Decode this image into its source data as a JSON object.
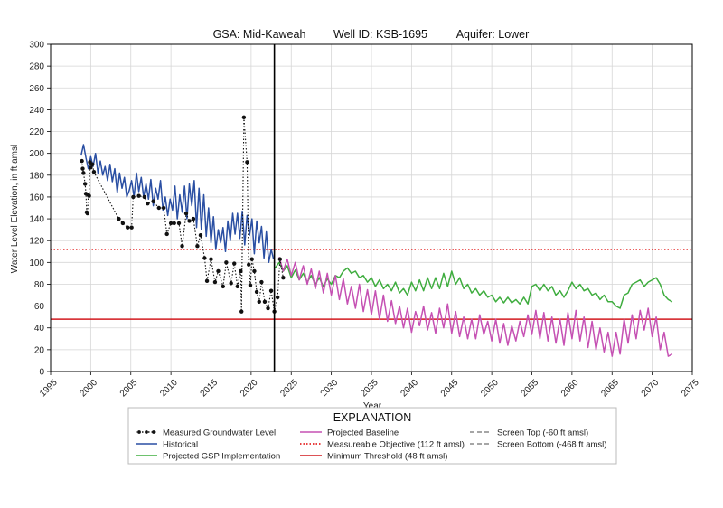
{
  "header": {
    "gsa": "GSA: Mid-Kaweah",
    "well": "Well ID: KSB-1695",
    "aquifer": "Aquifer: Lower"
  },
  "chart_data": {
    "type": "line",
    "title": "",
    "xlabel": "Year",
    "ylabel": "Water Level Elevation, in ft amsl",
    "xlim": [
      1995,
      2075
    ],
    "ylim": [
      0,
      300
    ],
    "xticks": [
      1995,
      2000,
      2005,
      2010,
      2015,
      2020,
      2025,
      2030,
      2035,
      2040,
      2045,
      2050,
      2055,
      2060,
      2065,
      2070,
      2075
    ],
    "yticks": [
      0,
      20,
      40,
      60,
      80,
      100,
      120,
      140,
      160,
      180,
      200,
      220,
      240,
      260,
      280,
      300
    ],
    "grid": true,
    "current_year_marker": 2022.9,
    "reference_lines": [
      {
        "name": "Measureable Objective (112 ft amsl)",
        "y": 112,
        "color": "#e00000",
        "style": "dotted"
      },
      {
        "name": "Minimum Threshold (48 ft amsl)",
        "y": 48,
        "color": "#d2191f",
        "style": "solid"
      }
    ],
    "series": [
      {
        "name": "Measured Groundwater Level",
        "color": "#111111",
        "style": "dotted-markers",
        "x": [
          1998.9,
          1999.0,
          1999.1,
          1999.3,
          1999.4,
          1999.5,
          1999.6,
          1999.7,
          1999.8,
          1999.9,
          2000.0,
          2000.2,
          2000.4,
          2003.5,
          2004.0,
          2004.6,
          2005.1,
          2005.3,
          2006.0,
          2006.7,
          2007.1,
          2007.8,
          2008.5,
          2009.1,
          2009.5,
          2010.0,
          2010.4,
          2011.0,
          2011.4,
          2011.9,
          2012.3,
          2012.8,
          2013.3,
          2013.7,
          2014.2,
          2014.5,
          2015.0,
          2015.5,
          2015.9,
          2016.5,
          2016.9,
          2017.5,
          2017.9,
          2018.3,
          2018.7,
          2018.8,
          2019.1,
          2019.5,
          2019.7,
          2019.9,
          2020.1,
          2020.4,
          2020.7,
          2021.0,
          2021.3,
          2021.7,
          2022.1,
          2022.5,
          2022.9,
          2023.3,
          2023.6,
          2024.0
        ],
        "y": [
          193,
          186,
          182,
          172,
          163,
          146,
          145,
          162,
          161,
          192,
          187,
          190,
          183,
          140,
          136,
          132,
          132,
          160,
          161,
          160,
          154,
          156,
          150,
          150,
          126,
          136,
          136,
          136,
          115,
          145,
          138,
          140,
          115,
          125,
          104,
          83,
          103,
          82,
          92,
          78,
          100,
          81,
          99,
          78,
          92,
          55,
          233,
          192,
          98,
          79,
          103,
          92,
          73,
          64,
          82,
          64,
          58,
          74,
          55,
          68,
          103,
          86
        ]
      },
      {
        "name": "Historical",
        "color": "#2a4fa3",
        "style": "solid",
        "x": [
          1998.8,
          1999.1,
          1999.4,
          1999.7,
          2000.0,
          2000.3,
          2000.6,
          2000.9,
          2001.2,
          2001.5,
          2001.8,
          2002.1,
          2002.4,
          2002.7,
          2003.0,
          2003.3,
          2003.6,
          2003.9,
          2004.2,
          2004.5,
          2004.8,
          2005.1,
          2005.4,
          2005.7,
          2006.0,
          2006.3,
          2006.6,
          2006.9,
          2007.2,
          2007.5,
          2007.8,
          2008.1,
          2008.4,
          2008.7,
          2009.0,
          2009.3,
          2009.6,
          2009.9,
          2010.2,
          2010.5,
          2010.8,
          2011.1,
          2011.4,
          2011.7,
          2012.0,
          2012.3,
          2012.6,
          2012.9,
          2013.2,
          2013.5,
          2013.8,
          2014.1,
          2014.4,
          2014.7,
          2015.0,
          2015.3,
          2015.6,
          2015.9,
          2016.2,
          2016.5,
          2016.8,
          2017.1,
          2017.4,
          2017.7,
          2018.0,
          2018.3,
          2018.6,
          2018.9,
          2019.2,
          2019.5,
          2019.8,
          2020.1,
          2020.4,
          2020.7,
          2021.0,
          2021.3,
          2021.6,
          2021.9,
          2022.2,
          2022.5,
          2022.8
        ],
        "y": [
          198,
          208,
          196,
          186,
          197,
          188,
          200,
          182,
          193,
          180,
          188,
          175,
          190,
          174,
          186,
          164,
          182,
          168,
          178,
          160,
          166,
          175,
          160,
          182,
          165,
          178,
          160,
          172,
          158,
          176,
          152,
          168,
          158,
          175,
          148,
          160,
          143,
          158,
          148,
          170,
          140,
          162,
          146,
          170,
          140,
          172,
          152,
          175,
          132,
          168,
          130,
          162,
          124,
          150,
          118,
          142,
          112,
          130,
          118,
          132,
          110,
          138,
          120,
          145,
          126,
          145,
          122,
          147,
          116,
          143,
          125,
          140,
          108,
          138,
          118,
          133,
          104,
          128,
          100,
          112,
          103
        ]
      },
      {
        "name": "Projected GSP Implementation",
        "color": "#3fad3f",
        "style": "solid",
        "x": [
          2023.0,
          2023.5,
          2024.0,
          2024.5,
          2025.0,
          2025.5,
          2026.0,
          2026.5,
          2027.0,
          2027.5,
          2028.0,
          2028.5,
          2029.0,
          2029.5,
          2030.0,
          2030.5,
          2031.0,
          2031.5,
          2032.0,
          2032.5,
          2033.0,
          2033.5,
          2034.0,
          2034.5,
          2035.0,
          2035.5,
          2036.0,
          2036.5,
          2037.0,
          2037.5,
          2038.0,
          2038.5,
          2039.0,
          2039.5,
          2040.0,
          2040.5,
          2041.0,
          2041.5,
          2042.0,
          2042.5,
          2043.0,
          2043.5,
          2044.0,
          2044.5,
          2045.0,
          2045.5,
          2046.0,
          2046.5,
          2047.0,
          2047.5,
          2048.0,
          2048.5,
          2049.0,
          2049.5,
          2050.0,
          2050.5,
          2051.0,
          2051.5,
          2052.0,
          2052.5,
          2053.0,
          2053.5,
          2054.0,
          2054.5,
          2055.0,
          2055.5,
          2056.0,
          2056.5,
          2057.0,
          2057.5,
          2058.0,
          2058.5,
          2059.0,
          2059.5,
          2060.0,
          2060.5,
          2061.0,
          2061.5,
          2062.0,
          2062.5,
          2063.0,
          2063.5,
          2064.0,
          2064.5,
          2065.0,
          2065.5,
          2066.0,
          2066.5,
          2067.0,
          2067.5,
          2068.0,
          2068.5,
          2069.0,
          2069.5,
          2070.0,
          2070.5,
          2071.0,
          2071.5,
          2072.0,
          2072.5
        ],
        "y": [
          95,
          100,
          92,
          97,
          86,
          93,
          84,
          90,
          82,
          88,
          80,
          86,
          78,
          85,
          80,
          88,
          86,
          92,
          95,
          90,
          92,
          86,
          88,
          82,
          86,
          78,
          84,
          76,
          80,
          74,
          82,
          72,
          76,
          70,
          82,
          74,
          84,
          74,
          86,
          76,
          86,
          76,
          90,
          78,
          92,
          80,
          86,
          76,
          80,
          72,
          76,
          70,
          74,
          68,
          70,
          64,
          68,
          63,
          68,
          63,
          66,
          62,
          68,
          62,
          78,
          80,
          74,
          80,
          74,
          78,
          70,
          74,
          68,
          74,
          82,
          76,
          80,
          74,
          76,
          70,
          72,
          66,
          70,
          64,
          64,
          60,
          58,
          70,
          72,
          80,
          82,
          84,
          78,
          82,
          84,
          86,
          80,
          70,
          66,
          64
        ]
      },
      {
        "name": "Projected Baseline",
        "color": "#c550b3",
        "style": "solid",
        "x": [
          2023.5,
          2024.0,
          2024.5,
          2025.0,
          2025.5,
          2026.0,
          2026.5,
          2027.0,
          2027.5,
          2028.0,
          2028.5,
          2029.0,
          2029.5,
          2030.0,
          2030.5,
          2031.0,
          2031.5,
          2032.0,
          2032.5,
          2033.0,
          2033.5,
          2034.0,
          2034.5,
          2035.0,
          2035.5,
          2036.0,
          2036.5,
          2037.0,
          2037.5,
          2038.0,
          2038.5,
          2039.0,
          2039.5,
          2040.0,
          2040.5,
          2041.0,
          2041.5,
          2042.0,
          2042.5,
          2043.0,
          2043.5,
          2044.0,
          2044.5,
          2045.0,
          2045.5,
          2046.0,
          2046.5,
          2047.0,
          2047.5,
          2048.0,
          2048.5,
          2049.0,
          2049.5,
          2050.0,
          2050.5,
          2051.0,
          2051.5,
          2052.0,
          2052.5,
          2053.0,
          2053.5,
          2054.0,
          2054.5,
          2055.0,
          2055.5,
          2056.0,
          2056.5,
          2057.0,
          2057.5,
          2058.0,
          2058.5,
          2059.0,
          2059.5,
          2060.0,
          2060.5,
          2061.0,
          2061.5,
          2062.0,
          2062.5,
          2063.0,
          2063.5,
          2064.0,
          2064.5,
          2065.0,
          2065.5,
          2066.0,
          2066.5,
          2067.0,
          2067.5,
          2068.0,
          2068.5,
          2069.0,
          2069.5,
          2070.0,
          2070.5,
          2071.0,
          2071.5,
          2072.0,
          2072.5
        ],
        "y": [
          105,
          92,
          103,
          88,
          100,
          84,
          97,
          80,
          94,
          76,
          92,
          72,
          90,
          70,
          88,
          66,
          85,
          62,
          78,
          58,
          80,
          55,
          75,
          52,
          74,
          48,
          70,
          46,
          65,
          44,
          60,
          40,
          58,
          36,
          55,
          42,
          60,
          38,
          54,
          35,
          58,
          40,
          62,
          35,
          55,
          32,
          50,
          30,
          48,
          30,
          52,
          34,
          46,
          28,
          48,
          26,
          44,
          24,
          42,
          28,
          46,
          32,
          52,
          34,
          56,
          30,
          54,
          28,
          50,
          26,
          48,
          24,
          54,
          30,
          56,
          28,
          50,
          22,
          46,
          20,
          40,
          18,
          36,
          14,
          36,
          16,
          48,
          26,
          52,
          30,
          56,
          38,
          58,
          32,
          50,
          20,
          36,
          14,
          16
        ]
      }
    ],
    "legend": {
      "title": "EXPLANATION",
      "placement": "bottom",
      "entries": [
        {
          "name": "Measured Groundwater Level",
          "color": "#111111",
          "style": "dotted-markers"
        },
        {
          "name": "Historical",
          "color": "#2a4fa3",
          "style": "solid"
        },
        {
          "name": "Projected GSP Implementation",
          "color": "#3fad3f",
          "style": "solid"
        },
        {
          "name": "Projected Baseline",
          "color": "#c550b3",
          "style": "solid"
        },
        {
          "name": "Measureable Objective (112 ft amsl)",
          "color": "#e00000",
          "style": "dotted"
        },
        {
          "name": "Minimum Threshold (48 ft amsl)",
          "color": "#d2191f",
          "style": "solid"
        },
        {
          "name": "Screen Top (-60 ft amsl)",
          "color": "#888888",
          "style": "dashed"
        },
        {
          "name": "Screen Bottom (-468 ft amsl)",
          "color": "#888888",
          "style": "dashed"
        }
      ]
    }
  }
}
